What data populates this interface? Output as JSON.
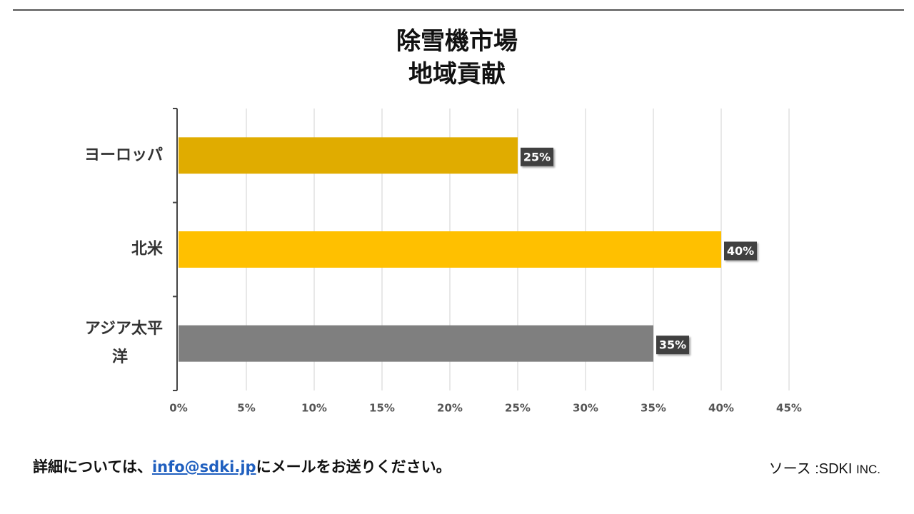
{
  "title": {
    "line1": "除雪機市場",
    "line2": "地域貢献"
  },
  "chart_data": {
    "type": "bar",
    "orientation": "horizontal",
    "title": "除雪機市場 地域貢献",
    "categories": [
      "ヨーロッパ",
      "北米",
      "アジア太平洋"
    ],
    "category_lines": [
      [
        "ヨーロッパ"
      ],
      [
        "北米"
      ],
      [
        "アジア太平",
        "洋"
      ]
    ],
    "values": [
      25,
      40,
      35
    ],
    "value_labels": [
      "25%",
      "40%",
      "35%"
    ],
    "bar_colors": [
      "#e0ac00",
      "#ffc000",
      "#7f7f7f"
    ],
    "xlim": [
      0,
      45
    ],
    "xticks": [
      0,
      5,
      10,
      15,
      20,
      25,
      30,
      35,
      40,
      45
    ],
    "xtick_labels": [
      "0%",
      "5%",
      "10%",
      "15%",
      "20%",
      "25%",
      "30%",
      "35%",
      "40%",
      "45%"
    ],
    "grid": true,
    "xlabel": "",
    "ylabel": ""
  },
  "footer": {
    "note_prefix": "詳細については、",
    "email": "info@sdki.jp",
    "note_suffix": "にメールをお送りください。",
    "source_label": "ソース  :SDKI ",
    "source_suffix": "INC."
  }
}
